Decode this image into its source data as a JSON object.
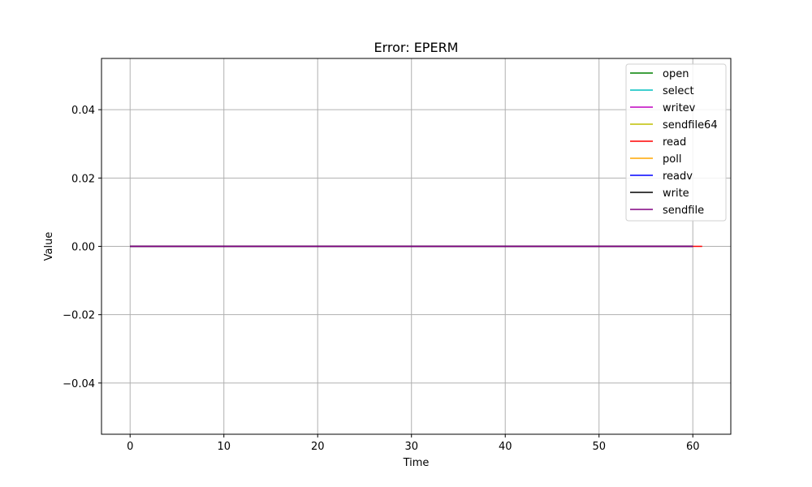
{
  "chart_data": {
    "type": "line",
    "title": "Error: EPERM",
    "xlabel": "Time",
    "ylabel": "Value",
    "xlim": [
      -3.05,
      64.05
    ],
    "ylim": [
      -0.055,
      0.055
    ],
    "x_ticks": [
      0,
      10,
      20,
      30,
      40,
      50,
      60
    ],
    "x_tick_labels": [
      "0",
      "10",
      "20",
      "30",
      "40",
      "50",
      "60"
    ],
    "y_ticks": [
      -0.04,
      -0.02,
      0.0,
      0.02,
      0.04
    ],
    "y_tick_labels": [
      "−0.04",
      "−0.02",
      "0.00",
      "0.02",
      "0.04"
    ],
    "grid": true,
    "legend_position": "top-right",
    "series": [
      {
        "name": "open",
        "color": "#008000",
        "x": [
          0,
          60
        ],
        "y": [
          0,
          0
        ]
      },
      {
        "name": "select",
        "color": "#00bfbf",
        "x": [
          0,
          60
        ],
        "y": [
          0,
          0
        ]
      },
      {
        "name": "writev",
        "color": "#bf00bf",
        "x": [
          0,
          60
        ],
        "y": [
          0,
          0
        ]
      },
      {
        "name": "sendfile64",
        "color": "#bfbf00",
        "x": [
          0,
          60
        ],
        "y": [
          0,
          0
        ]
      },
      {
        "name": "read",
        "color": "#ff0000",
        "x": [
          0,
          61
        ],
        "y": [
          0,
          0
        ]
      },
      {
        "name": "poll",
        "color": "#ffa500",
        "x": [
          0,
          60
        ],
        "y": [
          0,
          0
        ]
      },
      {
        "name": "readv",
        "color": "#0000ff",
        "x": [
          0,
          60
        ],
        "y": [
          0,
          0
        ]
      },
      {
        "name": "write",
        "color": "#000000",
        "x": [
          0,
          60
        ],
        "y": [
          0,
          0
        ]
      },
      {
        "name": "sendfile",
        "color": "#800080",
        "x": [
          0,
          60
        ],
        "y": [
          0,
          0
        ]
      }
    ]
  }
}
